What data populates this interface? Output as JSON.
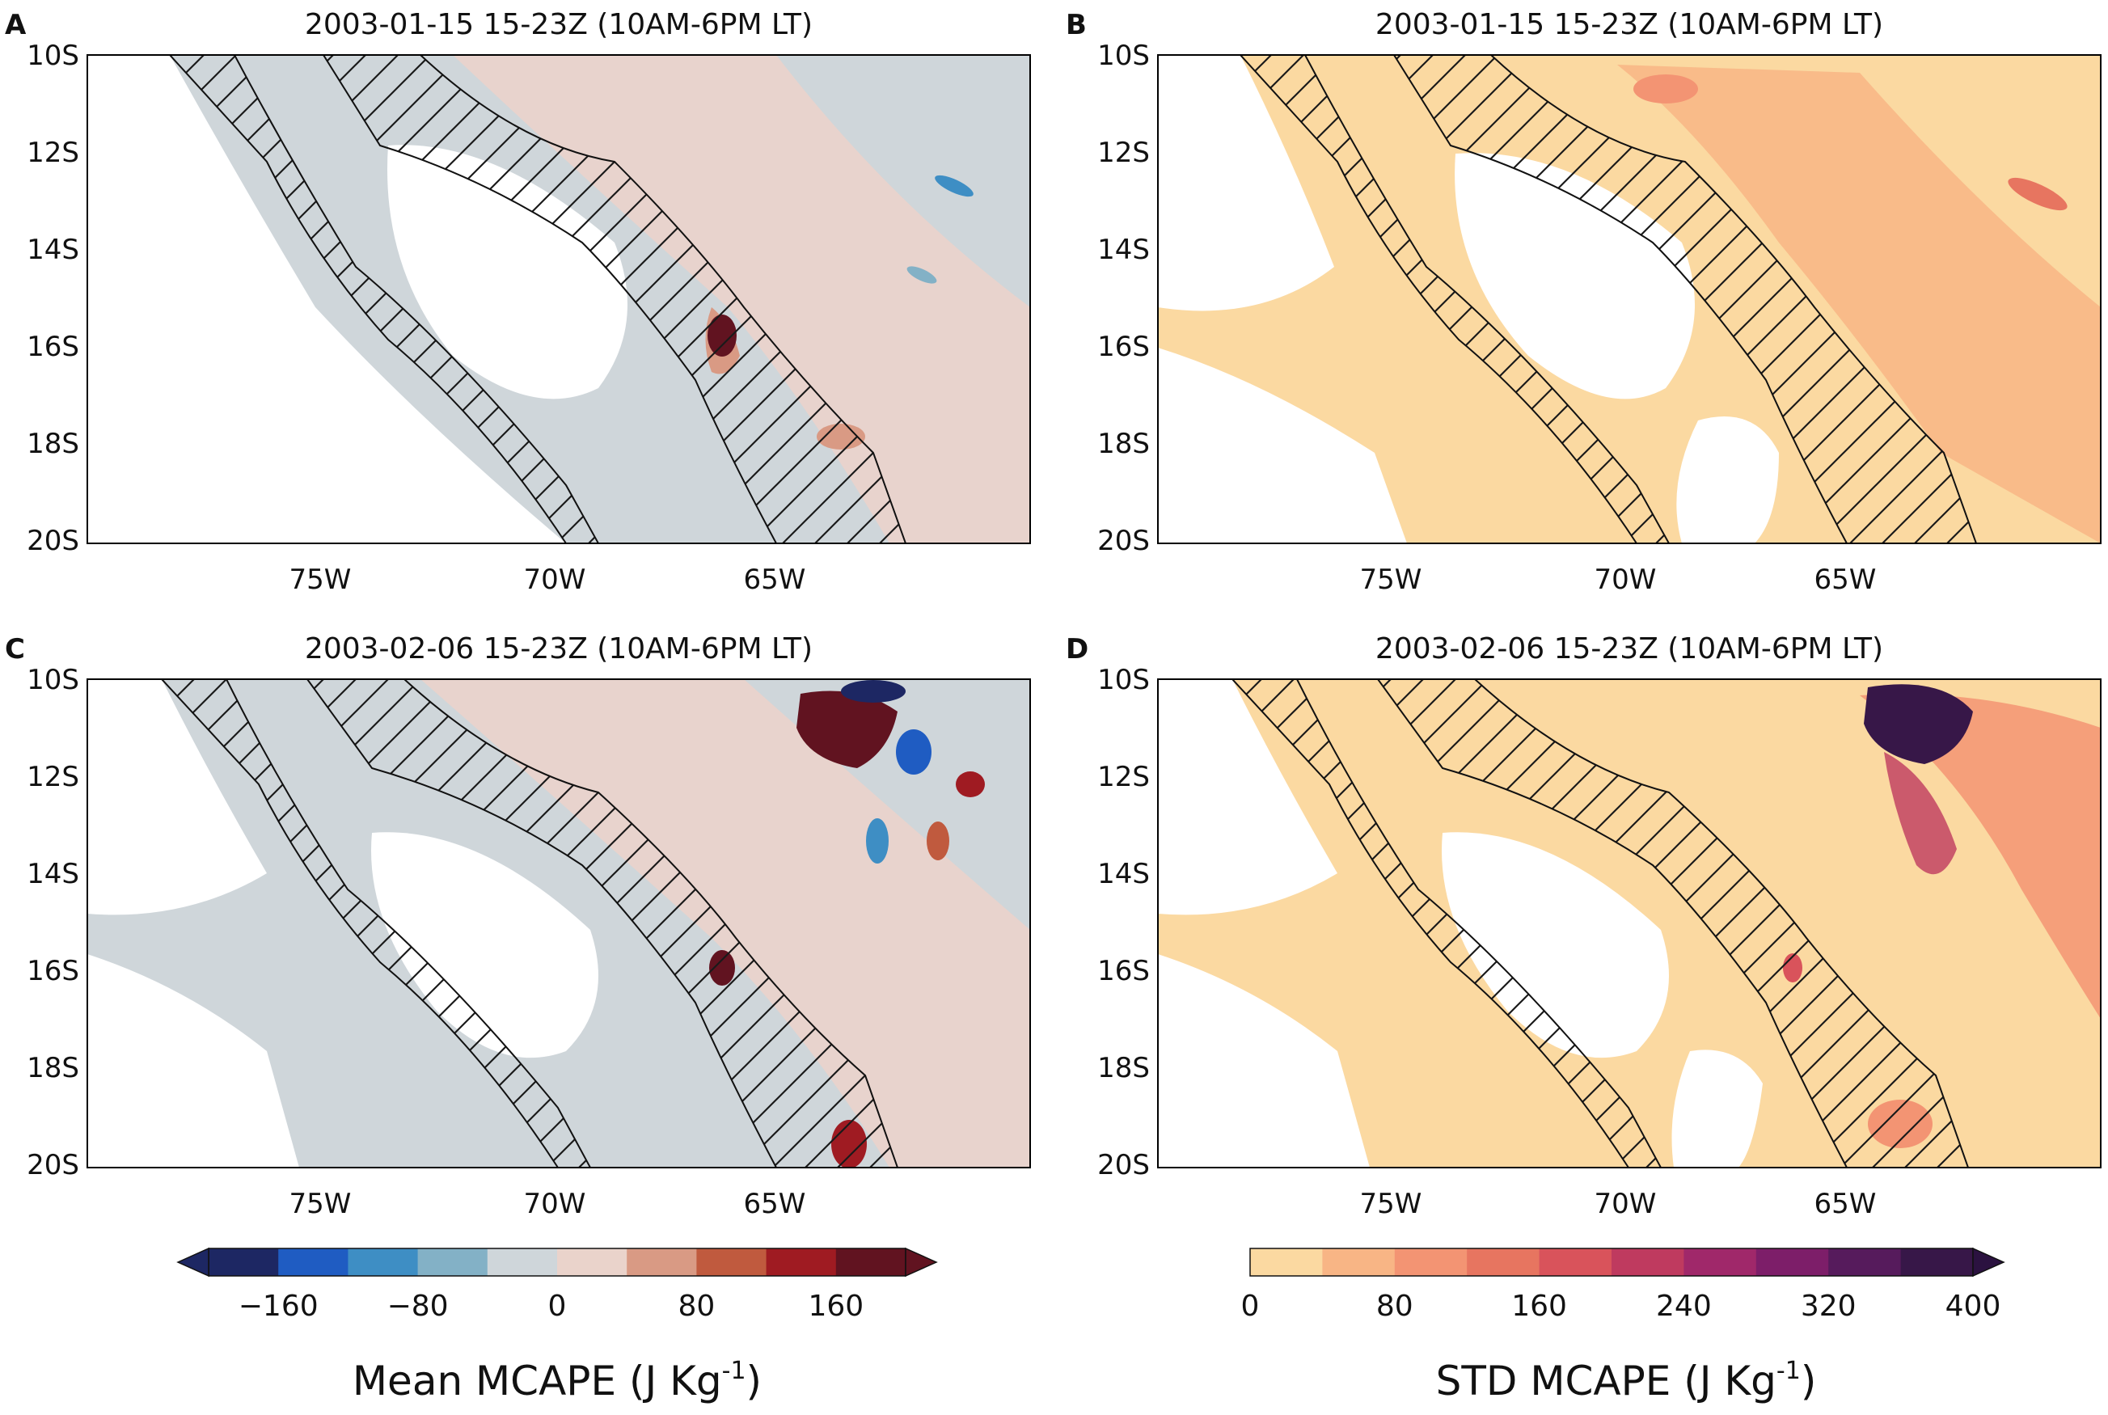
{
  "panels": [
    {
      "letter": "A",
      "title": "2003-01-15 15-23Z (10AM-6PM LT)",
      "field": "mean"
    },
    {
      "letter": "B",
      "title": "2003-01-15 15-23Z (10AM-6PM LT)",
      "field": "std"
    },
    {
      "letter": "C",
      "title": "2003-02-06 15-23Z (10AM-6PM LT)",
      "field": "mean"
    },
    {
      "letter": "D",
      "title": "2003-02-06 15-23Z (10AM-6PM LT)",
      "field": "std"
    }
  ],
  "axes": {
    "lat_ticks": [
      "10S",
      "12S",
      "14S",
      "16S",
      "18S",
      "20S"
    ],
    "lon_ticks": [
      "75W",
      "70W",
      "65W"
    ]
  },
  "colorbars": {
    "mean": {
      "label_main": "Mean MCAPE (J Kg",
      "label_sup": "-1",
      "label_end": ")",
      "tick_labels": [
        "−160",
        "−80",
        "0",
        "80",
        "160"
      ],
      "colors": [
        "#1d2763",
        "#1f5cc2",
        "#3e8ec4",
        "#83b1c6",
        "#cfd6da",
        "#ead3cb",
        "#d99a84",
        "#c05a3e",
        "#9f1b22",
        "#611320"
      ],
      "extend_low": "#1d2763",
      "extend_high": "#611320"
    },
    "std": {
      "label_main": "STD   MCAPE (J Kg",
      "label_sup": "-1",
      "label_end": ")",
      "tick_labels": [
        "0",
        "80",
        "160",
        "240",
        "320",
        "400"
      ],
      "colors": [
        "#fbd9a1",
        "#f8b585",
        "#f39473",
        "#e77560",
        "#d9535b",
        "#bf3a5f",
        "#a0286a",
        "#7d1e69",
        "#561b5c",
        "#371748"
      ],
      "extend_high": "#2b1240"
    }
  }
}
